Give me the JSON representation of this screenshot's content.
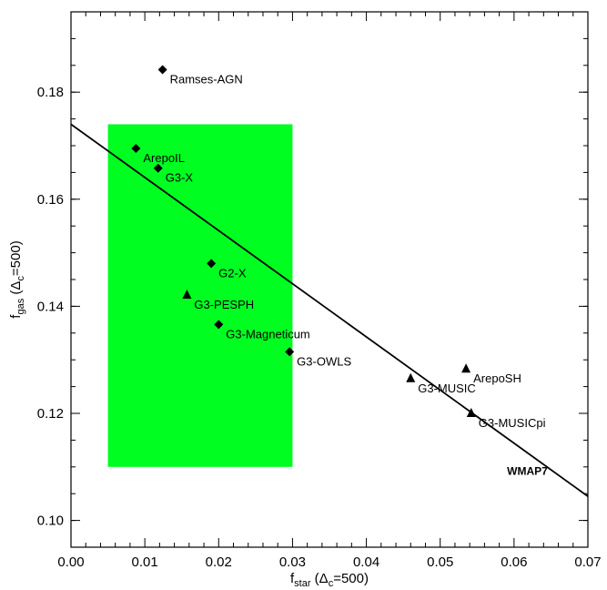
{
  "chart_data": {
    "type": "scatter",
    "title": "",
    "xlabel": {
      "base": "f",
      "sub": "star",
      "paren_open": " (Δ",
      "paren_sub": "c",
      "paren_close": "=500)"
    },
    "ylabel": {
      "base": "f",
      "sub": "gas",
      "paren_open": " (Δ",
      "paren_sub": "c",
      "paren_close": "=500)"
    },
    "xlim": [
      0.0,
      0.07
    ],
    "ylim": [
      0.095,
      0.195
    ],
    "xticks": [
      "0.00",
      "0.01",
      "0.02",
      "0.03",
      "0.04",
      "0.05",
      "0.06",
      "0.07"
    ],
    "yticks": [
      "0.10",
      "0.12",
      "0.14",
      "0.16",
      "0.18"
    ],
    "grid": false,
    "shaded_region": {
      "x": [
        0.005,
        0.03
      ],
      "y": [
        0.11,
        0.174
      ],
      "color": "#00ff20"
    },
    "fit_line": {
      "x": [
        0.0,
        0.07
      ],
      "y": [
        0.174,
        0.1045
      ],
      "color": "#000000"
    },
    "points": [
      {
        "label": "Ramses-AGN",
        "x": 0.0124,
        "y": 0.1842,
        "marker": "diamond"
      },
      {
        "label": "ArepoIL",
        "x": 0.0088,
        "y": 0.1695,
        "marker": "diamond"
      },
      {
        "label": "G3-X",
        "x": 0.0118,
        "y": 0.1658,
        "marker": "diamond"
      },
      {
        "label": "G2-X",
        "x": 0.019,
        "y": 0.148,
        "marker": "diamond"
      },
      {
        "label": "G3-PESPH",
        "x": 0.0157,
        "y": 0.1421,
        "marker": "triangle"
      },
      {
        "label": "G3-Magneticum",
        "x": 0.02,
        "y": 0.1366,
        "marker": "diamond"
      },
      {
        "label": "G3-OWLS",
        "x": 0.0296,
        "y": 0.1315,
        "marker": "diamond"
      },
      {
        "label": "G3-MUSIC",
        "x": 0.046,
        "y": 0.1265,
        "marker": "triangle"
      },
      {
        "label": "ArepoSH",
        "x": 0.0535,
        "y": 0.1283,
        "marker": "triangle"
      },
      {
        "label": "G3-MUSICpi",
        "x": 0.0542,
        "y": 0.12,
        "marker": "triangle"
      }
    ],
    "reference_label": "WMAP7"
  }
}
